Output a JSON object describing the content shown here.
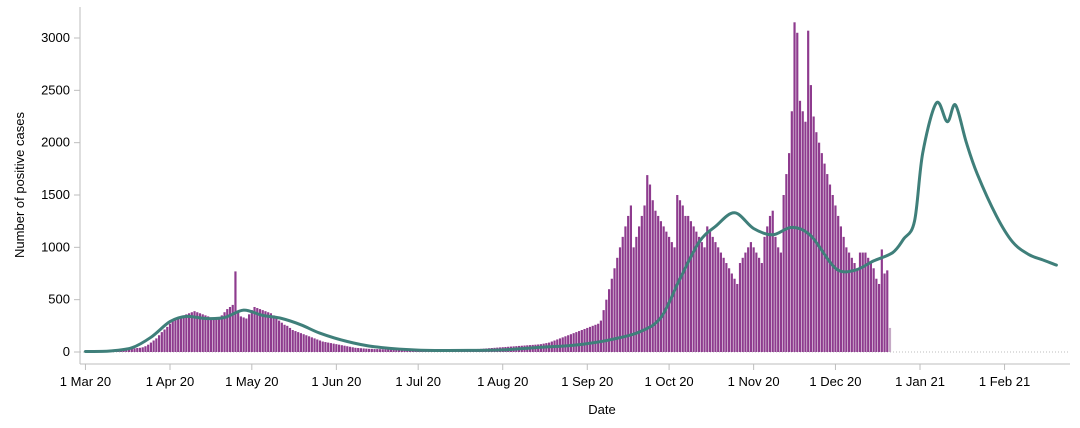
{
  "chart_data": {
    "type": "bar",
    "xlabel": "Date",
    "ylabel": "Number of positive cases",
    "ylim": [
      0,
      3200
    ],
    "x_range": [
      "2020-02-28",
      "2021-02-25"
    ],
    "y_ticks": [
      0,
      500,
      1000,
      1500,
      2000,
      2500,
      3000
    ],
    "x_ticks": [
      {
        "date": "2020-03-01",
        "label": "1 Mar 20"
      },
      {
        "date": "2020-04-01",
        "label": "1 Apr 20"
      },
      {
        "date": "2020-05-01",
        "label": "1 May 20"
      },
      {
        "date": "2020-06-01",
        "label": "1 Jun 20"
      },
      {
        "date": "2020-07-01",
        "label": "1 Jul 20"
      },
      {
        "date": "2020-08-01",
        "label": "1 Aug 20"
      },
      {
        "date": "2020-09-01",
        "label": "1 Sep 20"
      },
      {
        "date": "2020-10-01",
        "label": "1 Oct 20"
      },
      {
        "date": "2020-11-01",
        "label": "1 Nov 20"
      },
      {
        "date": "2020-12-01",
        "label": "1 Dec 20"
      },
      {
        "date": "2021-01-01",
        "label": "1 Jan 21"
      },
      {
        "date": "2021-02-01",
        "label": "1 Feb 21"
      }
    ],
    "grid": false,
    "colors": {
      "bars": "#8e3b8e",
      "bars_incomplete": "#c5a9c5",
      "average_line": "#3f7f7a"
    },
    "bars": [
      {
        "start": "2020-03-01",
        "values": [
          2,
          2,
          3,
          3,
          4,
          5,
          6,
          7,
          8,
          10,
          12,
          15,
          18,
          22,
          25,
          28,
          30,
          33,
          35,
          38,
          40,
          45,
          55,
          70,
          90,
          110,
          130,
          160,
          190,
          215,
          240,
          270,
          300,
          320,
          330,
          340,
          350,
          360,
          370,
          380,
          390,
          380,
          370,
          360,
          350,
          340,
          330,
          320,
          310,
          330,
          350,
          380,
          410,
          430,
          450,
          770,
          380,
          340,
          330,
          320,
          360,
          400,
          430,
          420,
          410,
          400,
          390,
          380,
          370,
          350,
          330,
          300,
          280,
          260,
          250,
          230,
          210,
          200,
          190,
          180,
          170,
          160,
          150,
          140,
          130,
          120,
          110,
          100,
          95,
          90,
          85,
          80,
          75,
          70,
          65,
          60,
          55,
          50,
          45,
          40,
          38,
          36,
          34,
          32,
          30,
          30,
          28,
          28,
          27,
          26,
          25,
          24,
          23,
          22,
          21,
          20,
          20,
          19,
          19,
          18,
          18,
          17,
          17,
          16,
          16,
          15,
          15,
          15,
          15,
          15,
          16,
          16,
          17,
          18,
          19,
          20,
          21,
          22,
          23,
          24,
          25,
          26,
          27,
          28,
          29,
          30,
          32,
          34,
          36,
          38,
          40,
          42,
          44,
          46,
          48,
          50,
          52,
          54,
          56,
          58,
          60,
          62,
          64,
          66,
          68,
          70,
          72,
          75,
          80,
          85,
          90,
          100,
          110,
          120,
          130,
          140,
          150,
          160,
          170,
          180,
          190,
          200,
          210,
          220,
          230,
          240,
          250,
          260,
          270,
          300,
          400,
          500,
          600,
          700,
          800,
          900,
          1000,
          1100,
          1200,
          1300,
          1400,
          1000,
          1100,
          1200,
          1300,
          1400,
          1690,
          1600,
          1450,
          1350,
          1300,
          1250,
          1200,
          1150,
          1100,
          1050,
          1000,
          1500,
          1450,
          1400,
          1300,
          1300,
          1250,
          1200,
          1150,
          1100,
          1050,
          1000,
          1200,
          1150,
          1100,
          1050,
          1000,
          950,
          900,
          850,
          800,
          750,
          700,
          650,
          850,
          900,
          950,
          1000,
          1050,
          1000,
          950,
          900,
          850,
          1100,
          1200,
          1300,
          1350,
          1100,
          1000,
          950,
          1500,
          1700,
          1900,
          2300,
          3150,
          3050,
          2400,
          2300,
          2200,
          3070,
          2550,
          2250,
          2100,
          2000,
          1900,
          1800,
          1700,
          1600,
          1500,
          1400,
          1300,
          1200,
          1100,
          1000,
          950,
          900,
          850,
          800,
          950,
          950,
          950,
          900,
          850,
          800,
          700,
          650,
          980,
          750,
          780,
          230
        ]
      }
    ],
    "bars_note_hidden": true,
    "series": [
      {
        "name": "",
        "type": "line",
        "points": [
          [
            "2020-03-01",
            5
          ],
          [
            "2020-03-10",
            10
          ],
          [
            "2020-03-18",
            40
          ],
          [
            "2020-03-25",
            140
          ],
          [
            "2020-04-01",
            290
          ],
          [
            "2020-04-07",
            340
          ],
          [
            "2020-04-14",
            320
          ],
          [
            "2020-04-21",
            330
          ],
          [
            "2020-04-28",
            400
          ],
          [
            "2020-05-05",
            350
          ],
          [
            "2020-05-12",
            320
          ],
          [
            "2020-05-19",
            260
          ],
          [
            "2020-05-26",
            180
          ],
          [
            "2020-06-05",
            100
          ],
          [
            "2020-06-15",
            50
          ],
          [
            "2020-07-01",
            18
          ],
          [
            "2020-07-20",
            15
          ],
          [
            "2020-08-01",
            20
          ],
          [
            "2020-08-15",
            45
          ],
          [
            "2020-08-25",
            60
          ],
          [
            "2020-09-01",
            80
          ],
          [
            "2020-09-10",
            120
          ],
          [
            "2020-09-20",
            190
          ],
          [
            "2020-09-28",
            330
          ],
          [
            "2020-10-05",
            700
          ],
          [
            "2020-10-12",
            1050
          ],
          [
            "2020-10-18",
            1200
          ],
          [
            "2020-10-25",
            1330
          ],
          [
            "2020-11-01",
            1180
          ],
          [
            "2020-11-08",
            1120
          ],
          [
            "2020-11-15",
            1190
          ],
          [
            "2020-11-22",
            1110
          ],
          [
            "2020-12-01",
            800
          ],
          [
            "2020-12-08",
            780
          ],
          [
            "2020-12-15",
            870
          ],
          [
            "2020-12-22",
            950
          ],
          [
            "2020-12-26",
            1080
          ],
          [
            "2020-12-30",
            1250
          ],
          [
            "2021-01-02",
            1900
          ],
          [
            "2021-01-07",
            2380
          ],
          [
            "2021-01-11",
            2200
          ],
          [
            "2021-01-14",
            2360
          ],
          [
            "2021-01-18",
            2000
          ],
          [
            "2021-01-22",
            1700
          ],
          [
            "2021-01-29",
            1300
          ],
          [
            "2021-02-04",
            1050
          ],
          [
            "2021-02-10",
            930
          ],
          [
            "2021-02-15",
            880
          ],
          [
            "2021-02-20",
            830
          ]
        ]
      }
    ]
  }
}
